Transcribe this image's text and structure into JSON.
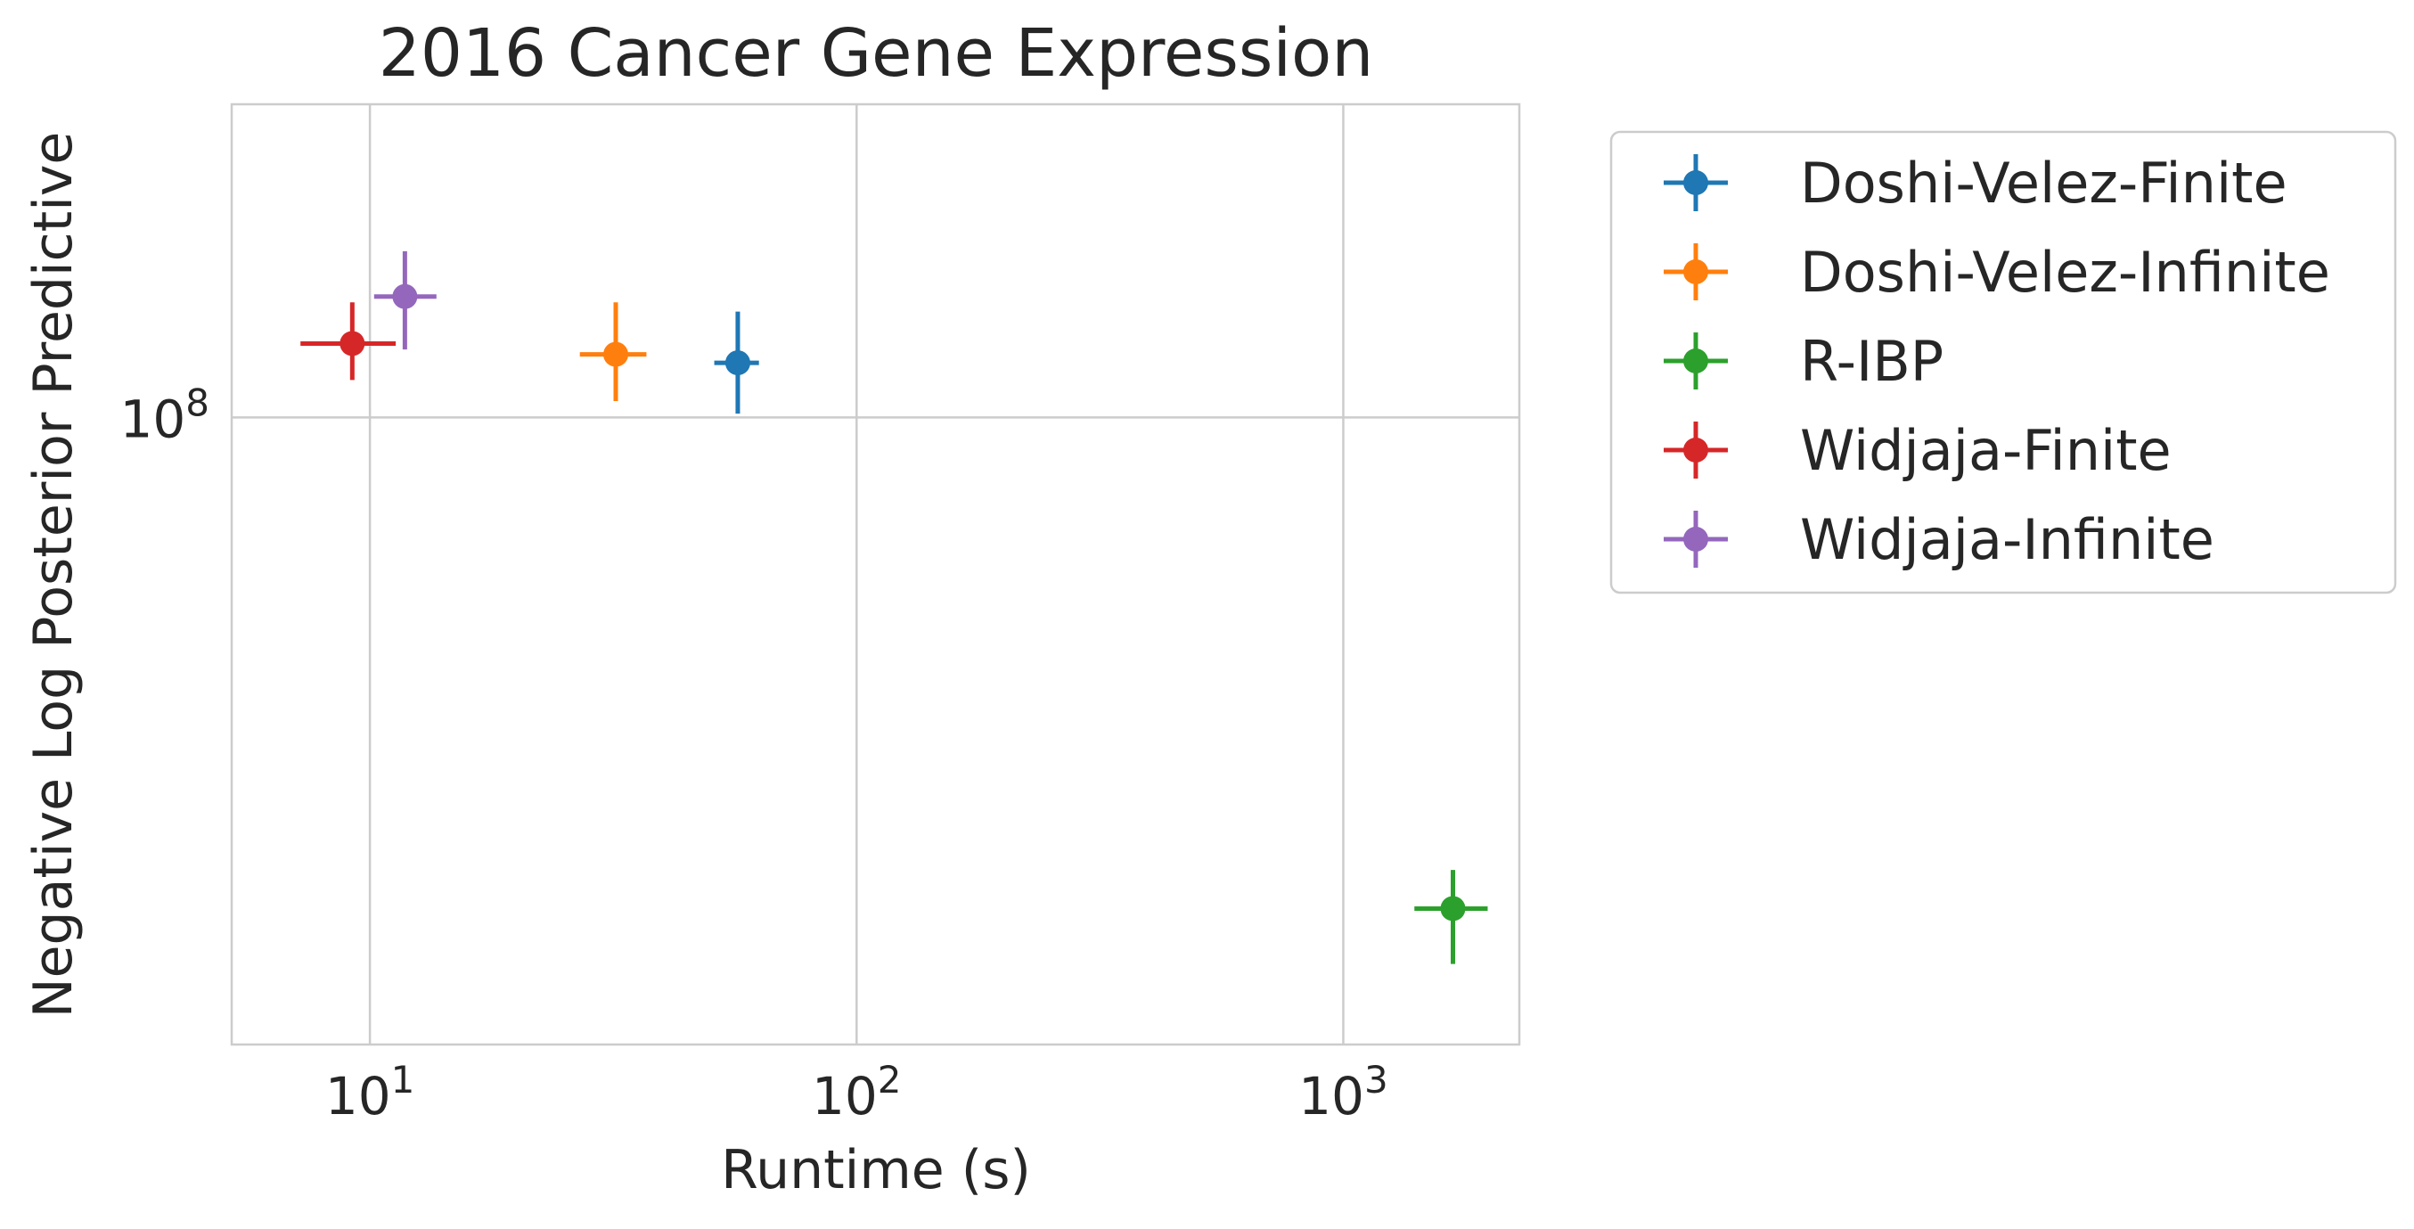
{
  "chart_data": {
    "type": "scatter",
    "title": "2016 Cancer Gene Expression",
    "xlabel": "Runtime (s)",
    "ylabel": "Negative Log Posterior Predictive",
    "x_scale": "log",
    "y_scale": "log",
    "xlim": [
      5.2,
      2300
    ],
    "ylim": [
      61000000.0,
      128000000.0
    ],
    "x_ticks": [
      {
        "value": 10,
        "base": "10",
        "exp": "1"
      },
      {
        "value": 100,
        "base": "10",
        "exp": "2"
      },
      {
        "value": 1000,
        "base": "10",
        "exp": "3"
      }
    ],
    "y_ticks": [
      {
        "value": 100000000,
        "base": "10",
        "exp": "8"
      }
    ],
    "grid": true,
    "legend_position": "outside-right",
    "series": [
      {
        "name": "Doshi-Velez-Finite",
        "color": "#1f77b4",
        "x": 57,
        "y": 104400000.0,
        "xerr": [
          51,
          63
        ],
        "yerr": [
          100300000.0,
          108700000.0
        ]
      },
      {
        "name": "Doshi-Velez-Infinite",
        "color": "#ff7f0e",
        "x": 32,
        "y": 105100000.0,
        "xerr": [
          27,
          37
        ],
        "yerr": [
          101300000.0,
          109500000.0
        ]
      },
      {
        "name": "R-IBP",
        "color": "#2ca02c",
        "x": 1680,
        "y": 67900000.0,
        "xerr": [
          1400,
          1980
        ],
        "yerr": [
          65000000.0,
          70000000.0
        ]
      },
      {
        "name": "Widjaja-Finite",
        "color": "#d62728",
        "x": 9.2,
        "y": 106000000.0,
        "xerr": [
          7.2,
          11.3
        ],
        "yerr": [
          103000000.0,
          109500000.0
        ]
      },
      {
        "name": "Widjaja-Infinite",
        "color": "#9467bd",
        "x": 11.8,
        "y": 110000000.0,
        "xerr": [
          10.2,
          13.7
        ],
        "yerr": [
          105500000.0,
          114000000.0
        ]
      }
    ]
  }
}
